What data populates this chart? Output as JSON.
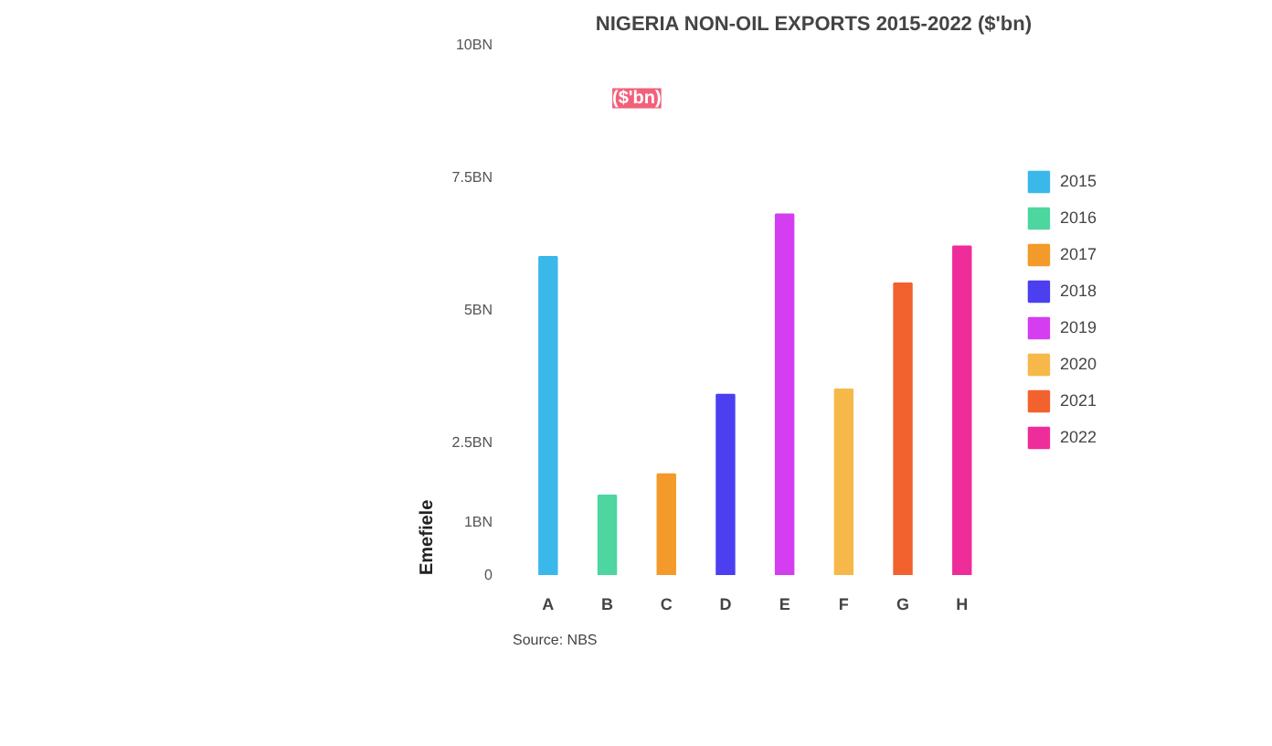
{
  "chart_data": {
    "type": "bar",
    "title": "NIGERIA NON-OIL EXPORTS 2015-2022 ($'bn)",
    "categories": [
      "A",
      "B",
      "C",
      "D",
      "E",
      "F",
      "G",
      "H"
    ],
    "series": [
      {
        "name": "2015",
        "color": "#3bb8ea",
        "values": [
          6.0,
          null,
          null,
          null,
          null,
          null,
          null,
          null
        ]
      },
      {
        "name": "2016",
        "color": "#4dd6a0",
        "values": [
          null,
          1.5,
          null,
          null,
          null,
          null,
          null,
          null
        ]
      },
      {
        "name": "2017",
        "color": "#f39a2a",
        "values": [
          null,
          null,
          1.9,
          null,
          null,
          null,
          null,
          null
        ]
      },
      {
        "name": "2018",
        "color": "#4b3ff0",
        "values": [
          null,
          null,
          null,
          3.4,
          null,
          null,
          null,
          null
        ]
      },
      {
        "name": "2019",
        "color": "#d43ef0",
        "values": [
          null,
          null,
          null,
          null,
          6.8,
          null,
          null,
          null
        ]
      },
      {
        "name": "2020",
        "color": "#f7b84a",
        "values": [
          null,
          null,
          null,
          null,
          null,
          3.5,
          null,
          null
        ]
      },
      {
        "name": "2021",
        "color": "#f2622e",
        "values": [
          null,
          null,
          null,
          null,
          null,
          null,
          5.5,
          null
        ]
      },
      {
        "name": "2022",
        "color": "#ee2d9a",
        "values": [
          null,
          null,
          null,
          null,
          null,
          null,
          null,
          6.2
        ]
      }
    ],
    "ylim": [
      0,
      10
    ],
    "yticks": [
      0,
      {
        "value": 1,
        "label": "1BN"
      },
      {
        "value": 2.5,
        "label": "2.5BN"
      },
      {
        "value": 5,
        "label": "5BN"
      },
      {
        "value": 7.5,
        "label": "7.5BN"
      },
      {
        "value": 10,
        "label": "10BN"
      }
    ],
    "grid": false,
    "legend": "right",
    "annotations": [
      "($'bn)",
      "Source: NBS",
      "Emefiele"
    ]
  }
}
